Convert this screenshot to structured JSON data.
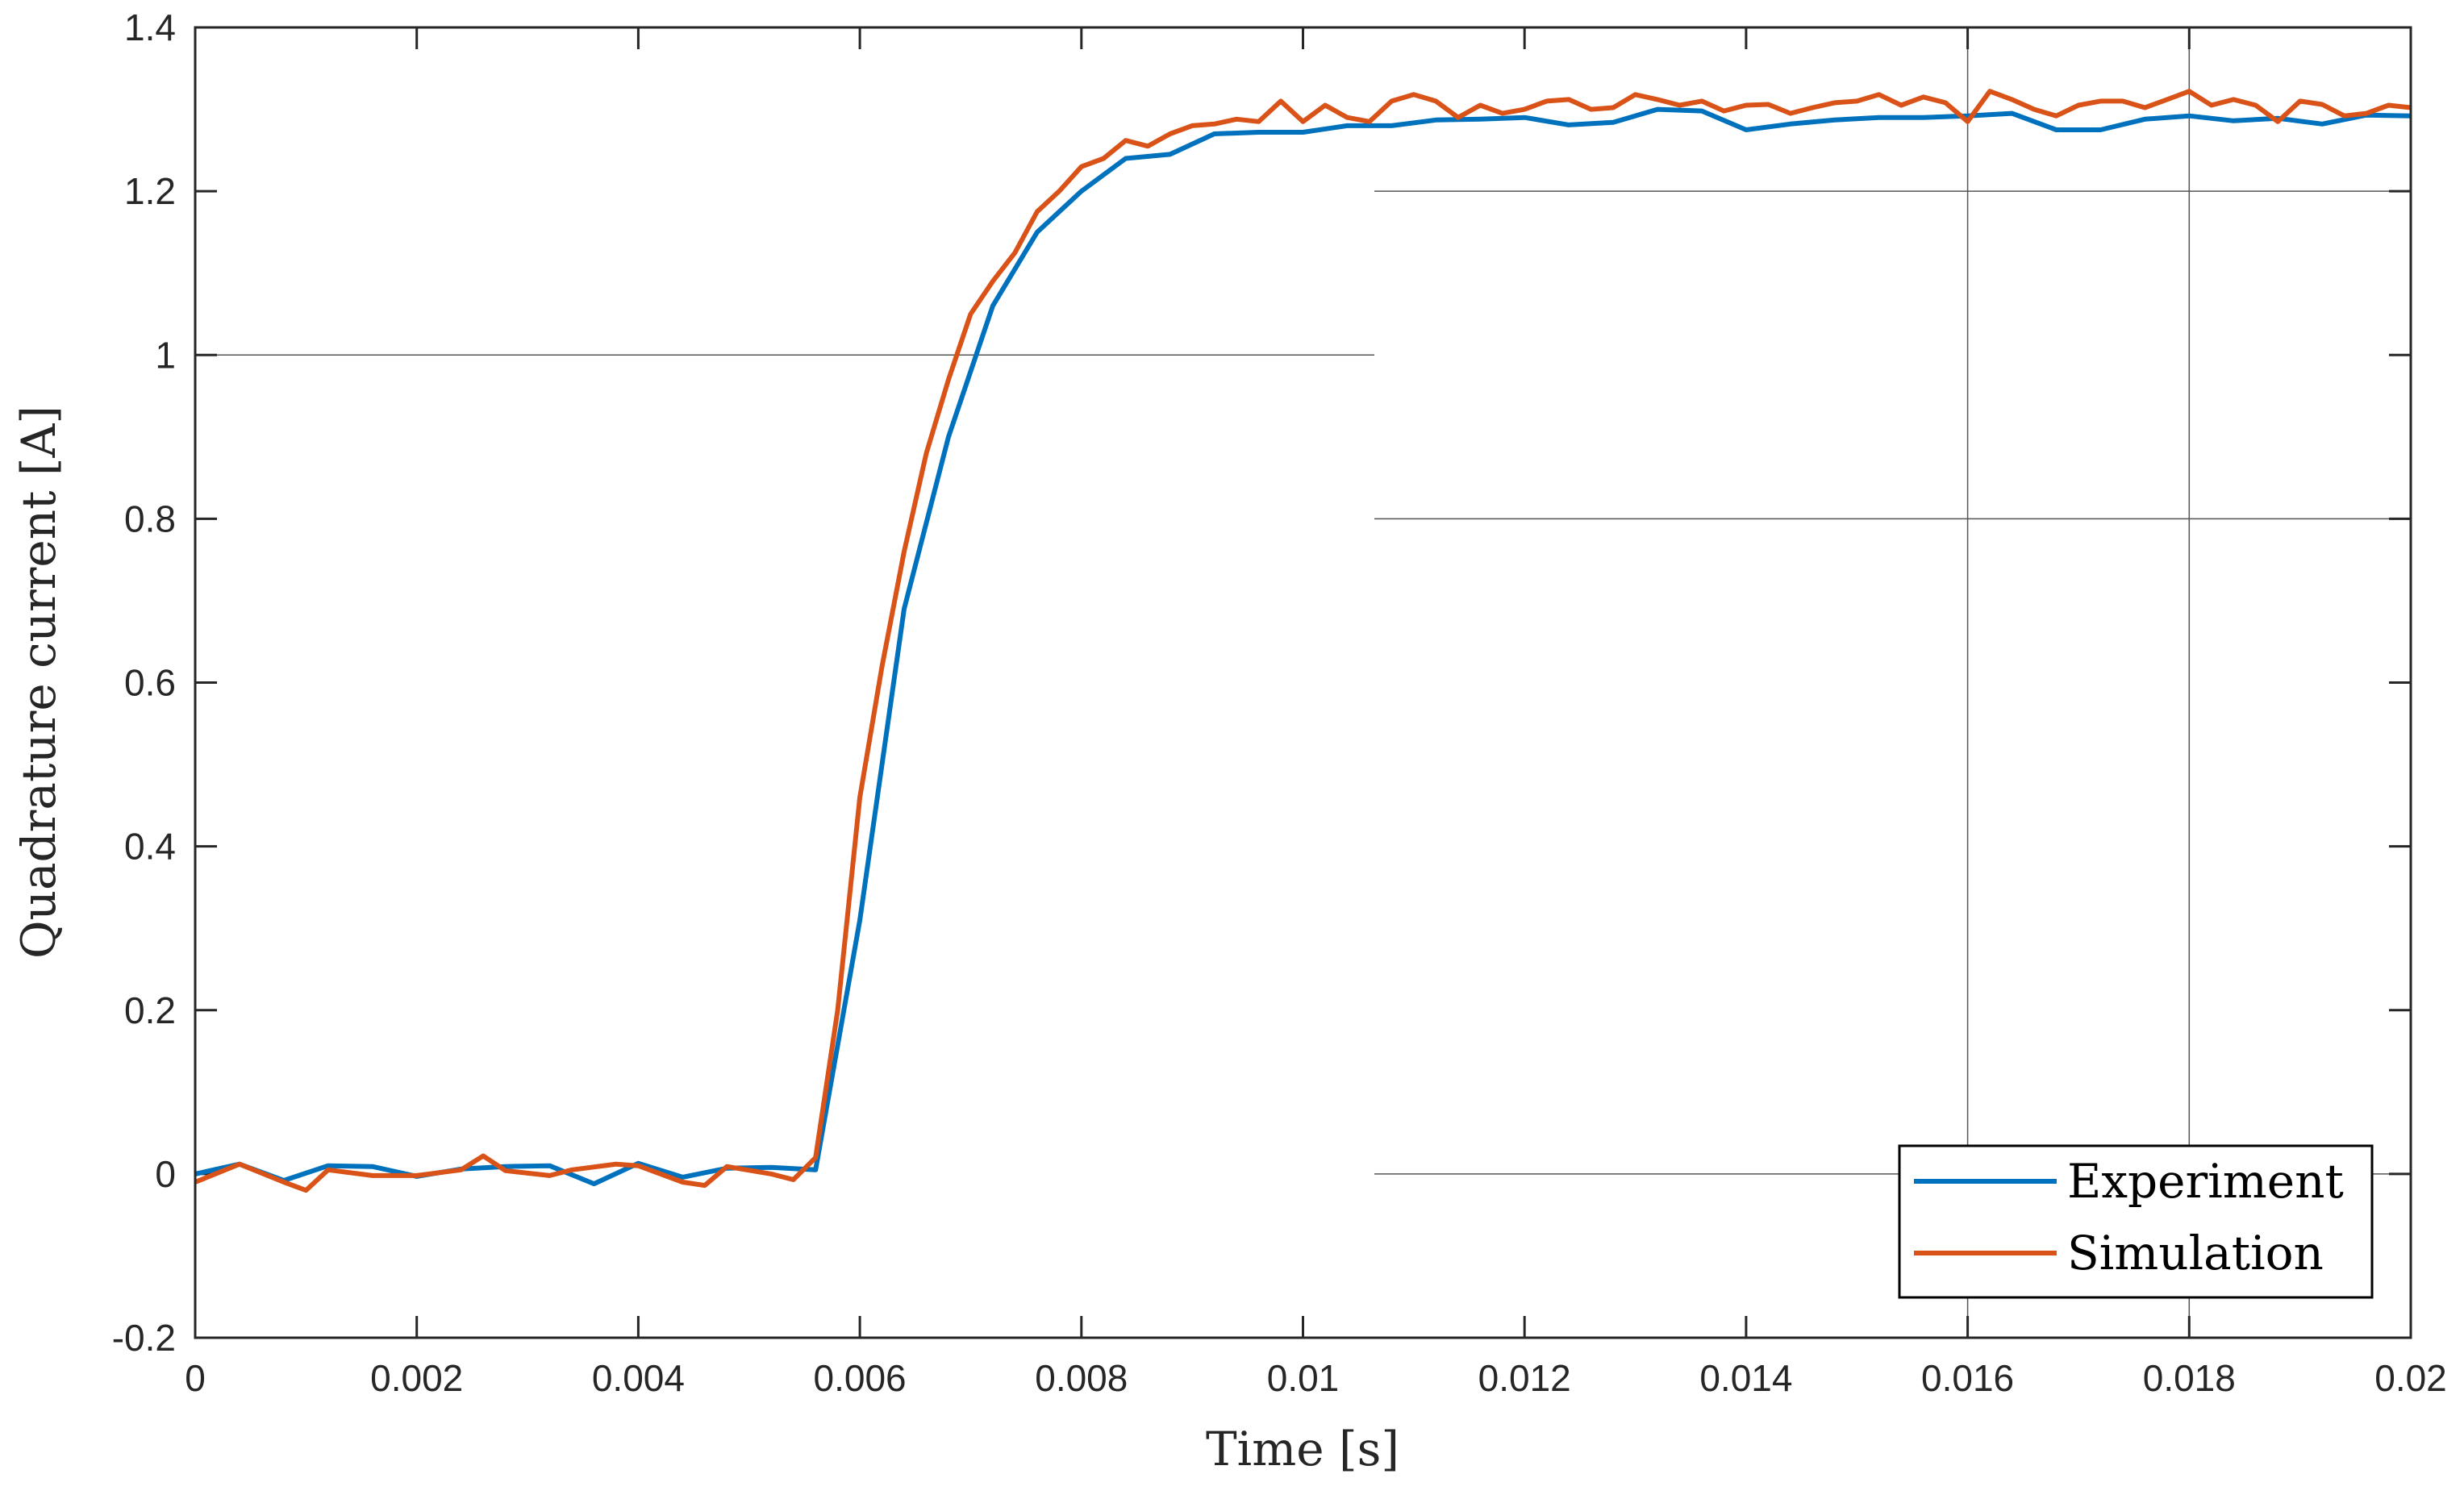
{
  "chart_data": {
    "type": "line",
    "title": "",
    "xlabel": "Time [s]",
    "ylabel": "Quadrature current [A]",
    "xlim": [
      0,
      0.02
    ],
    "ylim": [
      -0.2,
      1.4
    ],
    "x_ticks": [
      {
        "value": 0,
        "label": "0"
      },
      {
        "value": 0.002,
        "label": "0.002"
      },
      {
        "value": 0.004,
        "label": "0.004"
      },
      {
        "value": 0.006,
        "label": "0.006"
      },
      {
        "value": 0.008,
        "label": "0.008"
      },
      {
        "value": 0.01,
        "label": "0.01"
      },
      {
        "value": 0.012,
        "label": "0.012"
      },
      {
        "value": 0.014,
        "label": "0.014"
      },
      {
        "value": 0.016,
        "label": "0.016"
      },
      {
        "value": 0.018,
        "label": "0.018"
      },
      {
        "value": 0.02,
        "label": "0.02"
      }
    ],
    "y_ticks": [
      {
        "value": -0.2,
        "label": "-0.2"
      },
      {
        "value": 0,
        "label": "0"
      },
      {
        "value": 0.2,
        "label": "0.2"
      },
      {
        "value": 0.4,
        "label": "0.4"
      },
      {
        "value": 0.6,
        "label": "0.6"
      },
      {
        "value": 0.8,
        "label": "0.8"
      },
      {
        "value": 1,
        "label": "1"
      },
      {
        "value": 1.2,
        "label": "1.2"
      },
      {
        "value": 1.4,
        "label": "1.4"
      }
    ],
    "grid": "partial",
    "legend_position": "bottom-right",
    "series": [
      {
        "name": "Experiment",
        "color": "#0072BD",
        "x": [
          0,
          0.0004,
          0.0008,
          0.0012,
          0.0016,
          0.002,
          0.0024,
          0.0028,
          0.0032,
          0.0036,
          0.004,
          0.0044,
          0.0048,
          0.0052,
          0.0056,
          0.006,
          0.0064,
          0.0068,
          0.0072,
          0.0076,
          0.008,
          0.0084,
          0.0088,
          0.0092,
          0.0096,
          0.01,
          0.0104,
          0.0108,
          0.0112,
          0.0116,
          0.012,
          0.0124,
          0.0128,
          0.0132,
          0.0136,
          0.014,
          0.0144,
          0.0148,
          0.0152,
          0.0156,
          0.016,
          0.0164,
          0.0168,
          0.0172,
          0.0176,
          0.018,
          0.0184,
          0.0188,
          0.0192,
          0.0196,
          0.02
        ],
        "y": [
          0.0,
          0.012,
          -0.008,
          0.01,
          0.009,
          -0.003,
          0.006,
          0.009,
          0.01,
          -0.012,
          0.013,
          -0.004,
          0.007,
          0.008,
          0.005,
          0.31,
          0.69,
          0.9,
          1.06,
          1.15,
          1.2,
          1.24,
          1.245,
          1.27,
          1.272,
          1.272,
          1.28,
          1.28,
          1.287,
          1.288,
          1.29,
          1.281,
          1.284,
          1.3,
          1.298,
          1.275,
          1.282,
          1.287,
          1.29,
          1.29,
          1.292,
          1.295,
          1.275,
          1.275,
          1.288,
          1.292,
          1.286,
          1.289,
          1.282,
          1.293,
          1.292
        ]
      },
      {
        "name": "Simulation",
        "color": "#D95319",
        "x": [
          0,
          0.0004,
          0.0008,
          0.001,
          0.0012,
          0.0016,
          0.002,
          0.0024,
          0.0026,
          0.0028,
          0.0032,
          0.0034,
          0.0038,
          0.004,
          0.0044,
          0.0046,
          0.0048,
          0.0052,
          0.0054,
          0.0056,
          0.0058,
          0.006,
          0.0062,
          0.0064,
          0.0066,
          0.0068,
          0.007,
          0.0072,
          0.0074,
          0.0076,
          0.0078,
          0.008,
          0.0082,
          0.0084,
          0.0086,
          0.0088,
          0.009,
          0.0092,
          0.0094,
          0.0096,
          0.0098,
          0.01,
          0.0102,
          0.0104,
          0.0106,
          0.0108,
          0.011,
          0.0112,
          0.0114,
          0.0116,
          0.0118,
          0.012,
          0.0122,
          0.0124,
          0.0126,
          0.0128,
          0.013,
          0.0132,
          0.0134,
          0.0136,
          0.0138,
          0.014,
          0.0142,
          0.0144,
          0.0146,
          0.0148,
          0.015,
          0.0152,
          0.0154,
          0.0156,
          0.0158,
          0.016,
          0.0162,
          0.0164,
          0.0166,
          0.0168,
          0.017,
          0.0172,
          0.0174,
          0.0176,
          0.0178,
          0.018,
          0.0182,
          0.0184,
          0.0186,
          0.0188,
          0.019,
          0.0192,
          0.0194,
          0.0196,
          0.0198,
          0.02
        ],
        "y": [
          -0.01,
          0.012,
          -0.01,
          -0.02,
          0.005,
          -0.002,
          -0.002,
          0.005,
          0.022,
          0.004,
          -0.002,
          0.005,
          0.012,
          0.01,
          -0.01,
          -0.014,
          0.009,
          0.0,
          -0.007,
          0.02,
          0.2,
          0.46,
          0.62,
          0.76,
          0.88,
          0.97,
          1.05,
          1.09,
          1.125,
          1.175,
          1.2,
          1.23,
          1.24,
          1.262,
          1.255,
          1.27,
          1.28,
          1.282,
          1.288,
          1.285,
          1.31,
          1.285,
          1.305,
          1.29,
          1.285,
          1.31,
          1.318,
          1.31,
          1.29,
          1.305,
          1.295,
          1.3,
          1.31,
          1.312,
          1.3,
          1.302,
          1.318,
          1.312,
          1.305,
          1.31,
          1.298,
          1.305,
          1.306,
          1.295,
          1.302,
          1.308,
          1.31,
          1.318,
          1.305,
          1.315,
          1.308,
          1.285,
          1.322,
          1.312,
          1.3,
          1.292,
          1.305,
          1.31,
          1.31,
          1.302,
          1.312,
          1.322,
          1.305,
          1.312,
          1.305,
          1.285,
          1.31,
          1.306,
          1.292,
          1.295,
          1.305,
          1.302
        ]
      }
    ]
  }
}
